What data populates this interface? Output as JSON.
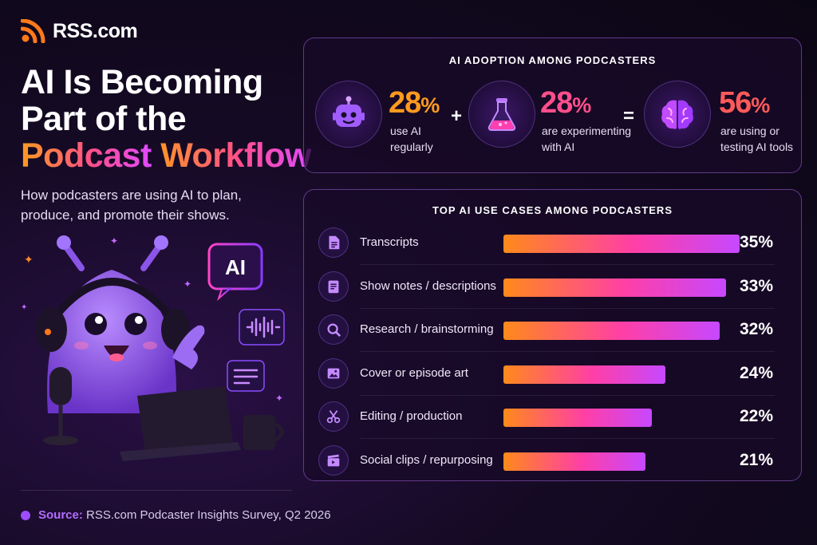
{
  "brand": {
    "name": "RSS.com"
  },
  "headline": {
    "line1": "AI Is Becoming",
    "line2": "Part of the",
    "line3a": "Podcast",
    "line3b": " Workflow"
  },
  "subtitle": "How podcasters are using AI to plan, produce, and promote their shows.",
  "mascot": {
    "badge": "AI"
  },
  "source": {
    "label": "Source:",
    "text": " RSS.com Podcaster Insights Survey, Q2 2026"
  },
  "adoption": {
    "title": "AI ADOPTION AMONG PODCASTERS",
    "stats": [
      {
        "value": 28,
        "unit": "%",
        "label_line1": "use AI",
        "label_line2": "regularly",
        "color": "#ff9a1f",
        "icon": "robot-icon"
      },
      {
        "value": 28,
        "unit": "%",
        "label_line1": "are experimenting",
        "label_line2": "with AI",
        "color": "#ff4f8b",
        "icon": "flask-icon"
      },
      {
        "value": 56,
        "unit": "%",
        "label_line1": "are using or",
        "label_line2": "testing AI tools",
        "color": "#ff5a5a",
        "icon": "brain-icon"
      }
    ],
    "plus": "+",
    "equals": "="
  },
  "chart_data": {
    "type": "bar",
    "title": "TOP AI USE CASES AMONG PODCASTERS",
    "orientation": "horizontal",
    "categories": [
      "Transcripts",
      "Show notes / descriptions",
      "Research / brainstorming",
      "Cover or episode art",
      "Editing / production",
      "Social clips / repurposing"
    ],
    "values": [
      35,
      33,
      32,
      24,
      22,
      21
    ],
    "value_labels": [
      "35%",
      "33%",
      "32%",
      "24%",
      "22%",
      "21%"
    ],
    "icons": [
      "document-icon",
      "notes-icon",
      "search-icon",
      "image-icon",
      "scissors-icon",
      "clapperboard-icon"
    ],
    "xlim": [
      0,
      35
    ],
    "grid": false,
    "colors": {
      "start": "#ff8a1a",
      "mid": "#ff3fa6",
      "end": "#c648ff"
    }
  }
}
